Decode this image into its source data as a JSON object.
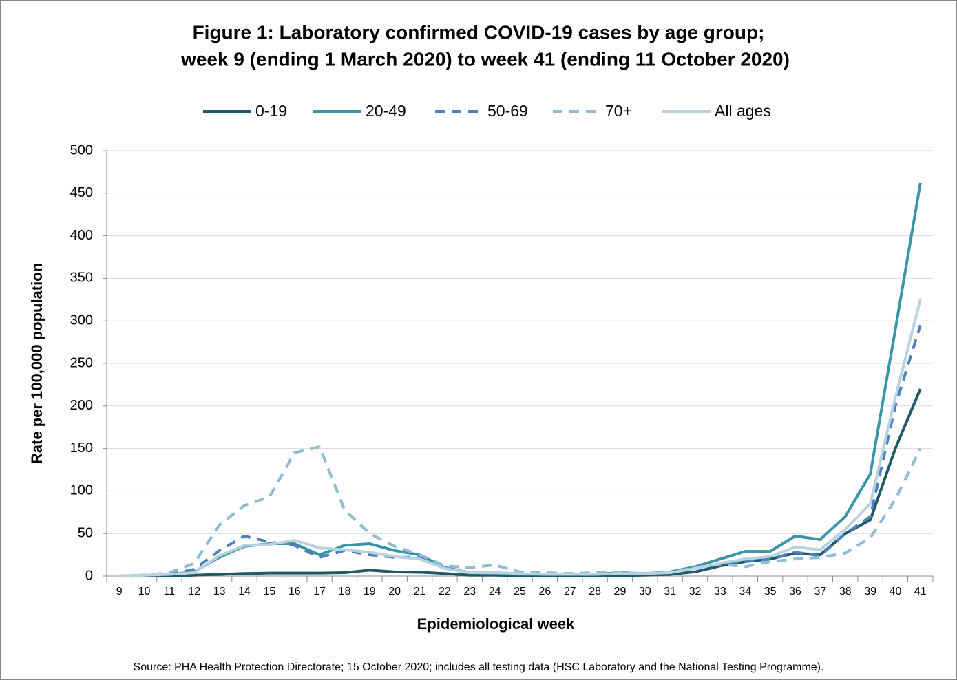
{
  "chart_data": {
    "type": "line",
    "title": [
      "Figure 1: Laboratory confirmed COVID-19 cases by age group;",
      "week 9 (ending 1 March 2020) to week 41 (ending 11 October 2020)"
    ],
    "x_label": "Epidemiological week",
    "y_label": "Rate per 100,000 population",
    "source": "Source: PHA Health Protection Directorate; 15 October 2020; includes all testing data (HSC Laboratory and the National Testing Programme).",
    "categories": [
      9,
      10,
      11,
      12,
      13,
      14,
      15,
      16,
      17,
      18,
      19,
      20,
      21,
      22,
      23,
      24,
      25,
      26,
      27,
      28,
      29,
      30,
      31,
      32,
      33,
      34,
      35,
      36,
      37,
      38,
      39,
      40,
      41
    ],
    "series": [
      {
        "name": "0-19",
        "color": "#1f5a67",
        "dashed": false,
        "values": [
          0,
          0,
          0,
          1,
          2,
          3,
          3.5,
          3.5,
          3.5,
          4,
          7,
          5,
          4.5,
          3,
          1,
          1,
          0.5,
          0.5,
          0.5,
          0.5,
          0.5,
          1,
          2,
          5,
          12,
          17,
          20,
          27,
          25,
          50,
          66,
          150,
          220
        ]
      },
      {
        "name": "20-49",
        "color": "#3a95a8",
        "dashed": false,
        "values": [
          0,
          1,
          2,
          5,
          22,
          35,
          38,
          38,
          25,
          36,
          38,
          30,
          25,
          10,
          4,
          3,
          2,
          2,
          2,
          2,
          4,
          3,
          5,
          11,
          20,
          29,
          29,
          47,
          43,
          70,
          120,
          290,
          462
        ]
      },
      {
        "name": "50-69",
        "color": "#4f7fbd",
        "dashed": true,
        "values": [
          0,
          1,
          2,
          8,
          30,
          47,
          40,
          36,
          22,
          30,
          25,
          22,
          22,
          10,
          4,
          4,
          3,
          2,
          2,
          2,
          3,
          3,
          4,
          10,
          14,
          17,
          20,
          28,
          24,
          50,
          70,
          200,
          295
        ]
      },
      {
        "name": "70+",
        "color": "#8bbcd2",
        "dashed": true,
        "values": [
          0,
          1,
          4,
          15,
          60,
          83,
          93,
          145,
          152,
          78,
          50,
          35,
          25,
          12,
          10,
          13,
          5,
          4,
          3,
          4,
          4,
          3,
          4,
          10,
          14,
          11,
          17,
          20,
          22,
          27,
          45,
          90,
          150
        ]
      },
      {
        "name": "All ages",
        "color": "#b9d3de",
        "dashed": false,
        "values": [
          0,
          1,
          2,
          4,
          24,
          36,
          37,
          42,
          33,
          31,
          28,
          23,
          20,
          9,
          4,
          4,
          3,
          2,
          2,
          2,
          3,
          3,
          4,
          9,
          15,
          20,
          23,
          34,
          31,
          55,
          85,
          210,
          325
        ]
      }
    ],
    "ylim": [
      0,
      500
    ],
    "yticks": [
      0,
      50,
      100,
      150,
      200,
      250,
      300,
      350,
      400,
      450,
      500
    ],
    "grid": true,
    "legend": "top"
  }
}
